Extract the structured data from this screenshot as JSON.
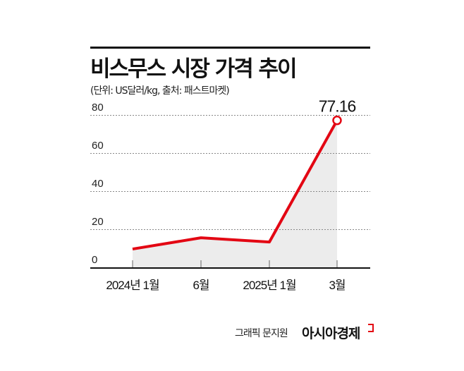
{
  "title": "비스무스 시장 가격 추이",
  "subtitle": "(단위: US달러/kg, 출처: 패스트마켓)",
  "credit": "그래픽 문지원",
  "brand": "아시아경제",
  "colors": {
    "line": "#e30613",
    "area": "#ececec",
    "grid": "#888888"
  },
  "chart_data": {
    "type": "line",
    "title": "비스무스 시장 가격 추이",
    "xlabel": "",
    "ylabel": "US달러/kg",
    "categories": [
      "2024년 1월",
      "6월",
      "2025년 1월",
      "3월"
    ],
    "values": [
      9.6,
      15.5,
      13.3,
      77.16
    ],
    "ylim": [
      0,
      80
    ],
    "yticks": [
      "0",
      "20",
      "40",
      "60",
      "80"
    ],
    "annotations": [
      {
        "label": "77.16",
        "index": 3
      }
    ],
    "grid": true,
    "legend": "none"
  }
}
